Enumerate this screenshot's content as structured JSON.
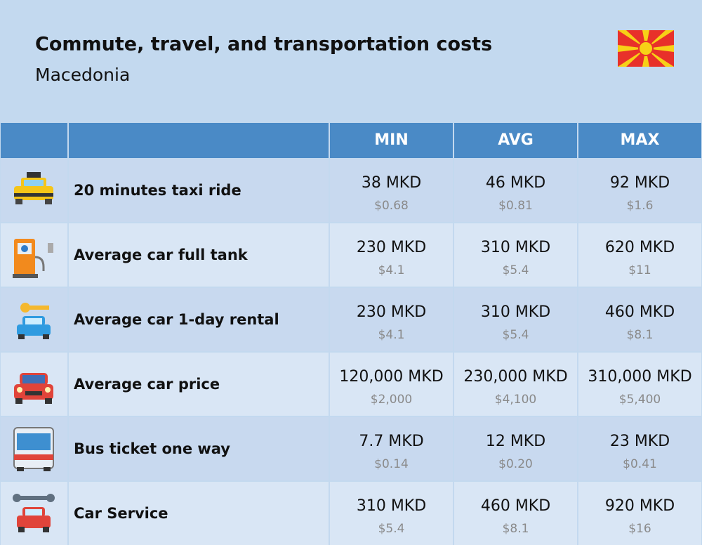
{
  "header": {
    "title": "Commute, travel, and transportation costs",
    "subtitle": "Macedonia"
  },
  "table": {
    "columns": [
      "MIN",
      "AVG",
      "MAX"
    ],
    "rows": [
      {
        "label": "20 minutes taxi ride",
        "cells": [
          {
            "local": "38 MKD",
            "usd": "$0.68"
          },
          {
            "local": "46 MKD",
            "usd": "$0.81"
          },
          {
            "local": "92 MKD",
            "usd": "$1.6"
          }
        ]
      },
      {
        "label": "Average car full tank",
        "cells": [
          {
            "local": "230 MKD",
            "usd": "$4.1"
          },
          {
            "local": "310 MKD",
            "usd": "$5.4"
          },
          {
            "local": "620 MKD",
            "usd": "$11"
          }
        ]
      },
      {
        "label": "Average car 1-day rental",
        "cells": [
          {
            "local": "230 MKD",
            "usd": "$4.1"
          },
          {
            "local": "310 MKD",
            "usd": "$5.4"
          },
          {
            "local": "460 MKD",
            "usd": "$8.1"
          }
        ]
      },
      {
        "label": "Average car price",
        "cells": [
          {
            "local": "120,000 MKD",
            "usd": "$2,000"
          },
          {
            "local": "230,000 MKD",
            "usd": "$4,100"
          },
          {
            "local": "310,000 MKD",
            "usd": "$5,400"
          }
        ]
      },
      {
        "label": "Bus ticket one way",
        "cells": [
          {
            "local": "7.7 MKD",
            "usd": "$0.14"
          },
          {
            "local": "12 MKD",
            "usd": "$0.20"
          },
          {
            "local": "23 MKD",
            "usd": "$0.41"
          }
        ]
      },
      {
        "label": "Car Service",
        "cells": [
          {
            "local": "310 MKD",
            "usd": "$5.4"
          },
          {
            "local": "460 MKD",
            "usd": "$8.1"
          },
          {
            "local": "920 MKD",
            "usd": "$16"
          }
        ]
      }
    ]
  }
}
